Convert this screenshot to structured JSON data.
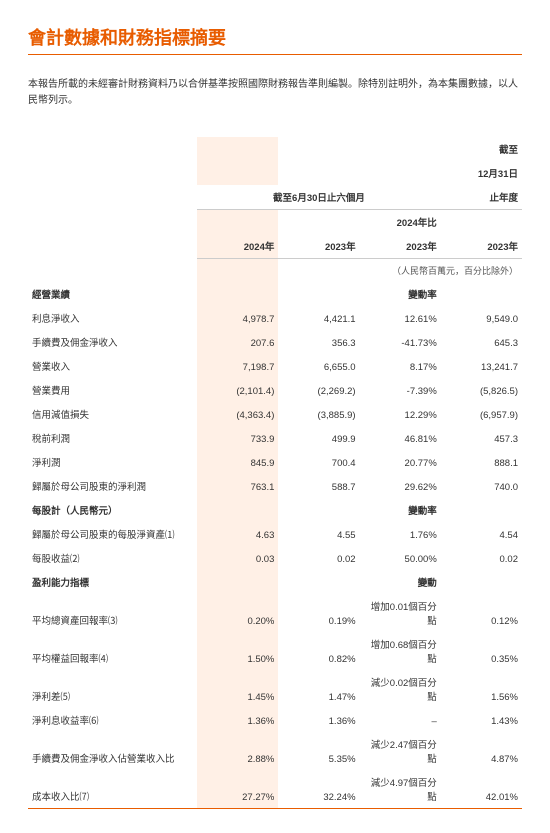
{
  "title": "會計數據和財務指標摘要",
  "intro": "本報告所載的未經審計財務資料乃以合併基準按照國際財務報告準則編製。除特別註明外，為本集團數據，以人民幣列示。",
  "headers": {
    "period_to": "截至",
    "six_months": "截至6月30日止六個月",
    "dec31": "12月31日",
    "year_end": "止年度",
    "y2024": "2024年",
    "y2023": "2023年",
    "vs_label1": "2024年比",
    "vs_label2": "2023年",
    "vs_label_yr": "2023年",
    "unit_note": "（人民幣百萬元，百分比除外）"
  },
  "sections": {
    "s1": {
      "name": "經營業績",
      "change": "變動率"
    },
    "s2": {
      "name": "每股計（人民幣元）",
      "change": "變動率"
    },
    "s3": {
      "name": "盈利能力指標",
      "change": "變動"
    }
  },
  "rows": {
    "r1": {
      "label": "利息淨收入",
      "a": "4,978.7",
      "b": "4,421.1",
      "c": "12.61%",
      "d": "9,549.0"
    },
    "r2": {
      "label": "手續費及佣金淨收入",
      "a": "207.6",
      "b": "356.3",
      "c": "-41.73%",
      "d": "645.3"
    },
    "r3": {
      "label": "營業收入",
      "a": "7,198.7",
      "b": "6,655.0",
      "c": "8.17%",
      "d": "13,241.7"
    },
    "r4": {
      "label": "營業費用",
      "a": "(2,101.4)",
      "b": "(2,269.2)",
      "c": "-7.39%",
      "d": "(5,826.5)"
    },
    "r5": {
      "label": "信用減值損失",
      "a": "(4,363.4)",
      "b": "(3,885.9)",
      "c": "12.29%",
      "d": "(6,957.9)"
    },
    "r6": {
      "label": "稅前利潤",
      "a": "733.9",
      "b": "499.9",
      "c": "46.81%",
      "d": "457.3"
    },
    "r7": {
      "label": "淨利潤",
      "a": "845.9",
      "b": "700.4",
      "c": "20.77%",
      "d": "888.1"
    },
    "r8": {
      "label": "歸屬於母公司股東的淨利潤",
      "a": "763.1",
      "b": "588.7",
      "c": "29.62%",
      "d": "740.0"
    },
    "r9": {
      "label": "歸屬於母公司股東的每股淨資產⑴",
      "a": "4.63",
      "b": "4.55",
      "c": "1.76%",
      "d": "4.54"
    },
    "r10": {
      "label": "每股收益⑵",
      "a": "0.03",
      "b": "0.02",
      "c": "50.00%",
      "d": "0.02"
    },
    "r11": {
      "label": "平均總資產回報率⑶",
      "a": "0.20%",
      "b": "0.19%",
      "c": "增加0.01個百分點",
      "d": "0.12%"
    },
    "r12": {
      "label": "平均權益回報率⑷",
      "a": "1.50%",
      "b": "0.82%",
      "c": "增加0.68個百分點",
      "d": "0.35%"
    },
    "r13": {
      "label": "淨利差⑸",
      "a": "1.45%",
      "b": "1.47%",
      "c": "減少0.02個百分點",
      "d": "1.56%"
    },
    "r14": {
      "label": "淨利息收益率⑹",
      "a": "1.36%",
      "b": "1.36%",
      "c": "–",
      "d": "1.43%"
    },
    "r15": {
      "label": "手續費及佣金淨收入佔營業收入比",
      "a": "2.88%",
      "b": "5.35%",
      "c": "減少2.47個百分點",
      "d": "4.87%"
    },
    "r16": {
      "label": "成本收入比⑺",
      "a": "27.27%",
      "b": "32.24%",
      "c": "減少4.97個百分點",
      "d": "42.01%"
    }
  }
}
